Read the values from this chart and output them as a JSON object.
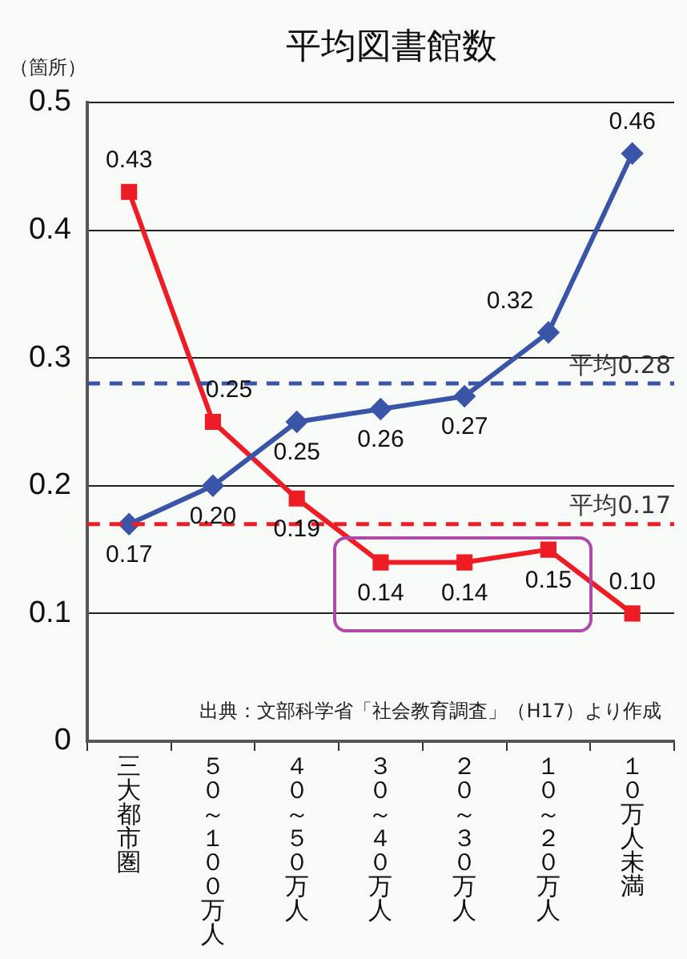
{
  "chart_data": {
    "type": "line",
    "title": "平均図書館数",
    "ylabel": "（箇所）",
    "categories": [
      "三大都市圏",
      "５０～１００万人",
      "４０～５０万人",
      "３０～４０万人",
      "２０～３０万人",
      "１０～２０万人",
      "１０万人未満"
    ],
    "series": [
      {
        "color": "#3a55a8",
        "marker": "diamond",
        "values": [
          0.17,
          0.2,
          0.25,
          0.26,
          0.27,
          0.32,
          0.46
        ],
        "value_labels": [
          "0.17",
          "0.20",
          "0.25",
          "0.26",
          "0.27",
          "0.32",
          "0.46"
        ]
      },
      {
        "color": "#ee1c24",
        "marker": "square",
        "values": [
          0.43,
          0.25,
          0.19,
          0.14,
          0.14,
          0.15,
          0.1
        ],
        "value_labels": [
          "0.43",
          "0.25",
          "0.19",
          "0.14",
          "0.14",
          "0.15",
          "0.10"
        ]
      }
    ],
    "ylim": [
      0,
      0.5
    ],
    "yticks": [
      0,
      0.1,
      0.2,
      0.3,
      0.4,
      0.5
    ],
    "grid": "y",
    "legend": false,
    "ref_lines": [
      {
        "axis": "y",
        "value": 0.28,
        "label": "平均0.28",
        "color": "#3a55a8",
        "line_style": "dashed"
      },
      {
        "axis": "y",
        "value": 0.17,
        "label": "平均0.17",
        "color": "#ee1c24",
        "line_style": "dashed"
      }
    ],
    "annotations": [
      "出典：文部科学省「社会教育調査」（H17）より作成"
    ]
  }
}
